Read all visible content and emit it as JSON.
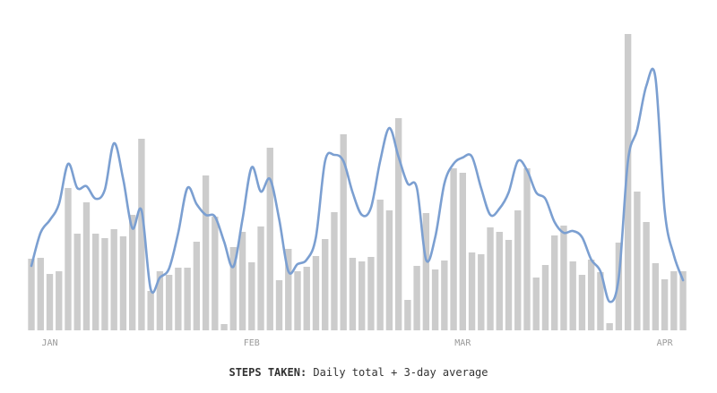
{
  "chart_data": {
    "type": "bar",
    "title": "STEPS TAKEN:",
    "subtitle": "Daily total + 3-day average",
    "categories": [
      null,
      null,
      "JAN",
      null,
      null,
      null,
      null,
      null,
      null,
      null,
      null,
      null,
      null,
      null,
      null,
      null,
      null,
      null,
      null,
      null,
      null,
      null,
      null,
      null,
      "FEB",
      null,
      null,
      null,
      null,
      null,
      null,
      null,
      null,
      null,
      null,
      null,
      null,
      null,
      null,
      null,
      null,
      null,
      null,
      null,
      null,
      null,
      null,
      "MAR",
      null,
      null,
      null,
      null,
      null,
      null,
      null,
      null,
      null,
      null,
      null,
      null,
      null,
      null,
      null,
      null,
      null,
      null,
      null,
      null,
      null,
      "APR",
      null,
      null
    ],
    "ylim": [
      0,
      340
    ],
    "series": [
      {
        "type": "bar",
        "color": "#cccccc",
        "values": [
          80,
          81,
          63,
          66,
          159,
          108,
          143,
          108,
          103,
          113,
          105,
          129,
          214,
          44,
          66,
          62,
          70,
          70,
          99,
          173,
          127,
          7,
          93,
          110,
          76,
          116,
          204,
          56,
          91,
          66,
          71,
          83,
          102,
          132,
          219,
          81,
          77,
          82,
          146,
          134,
          237,
          34,
          72,
          131,
          68,
          78,
          181,
          176,
          87,
          85,
          115,
          110,
          101,
          134,
          181,
          59,
          73,
          106,
          117,
          77,
          62,
          79,
          65,
          8,
          98,
          331,
          155,
          121,
          75,
          57,
          66,
          66
        ]
      },
      {
        "type": "line",
        "color": "#7b9fd1",
        "values": [
          72,
          109,
          123,
          141,
          186,
          159,
          161,
          147,
          157,
          209,
          169,
          114,
          134,
          46,
          59,
          69,
          109,
          159,
          141,
          129,
          127,
          99,
          71,
          124,
          182,
          155,
          169,
          124,
          66,
          74,
          79,
          104,
          189,
          196,
          189,
          154,
          129,
          137,
          189,
          226,
          194,
          164,
          159,
          79,
          104,
          164,
          186,
          193,
          194,
          159,
          129,
          136,
          154,
          189,
          179,
          154,
          147,
          121,
          109,
          111,
          104,
          79,
          66,
          32,
          59,
          189,
          224,
          273,
          282,
          134,
          84,
          56
        ]
      }
    ]
  }
}
